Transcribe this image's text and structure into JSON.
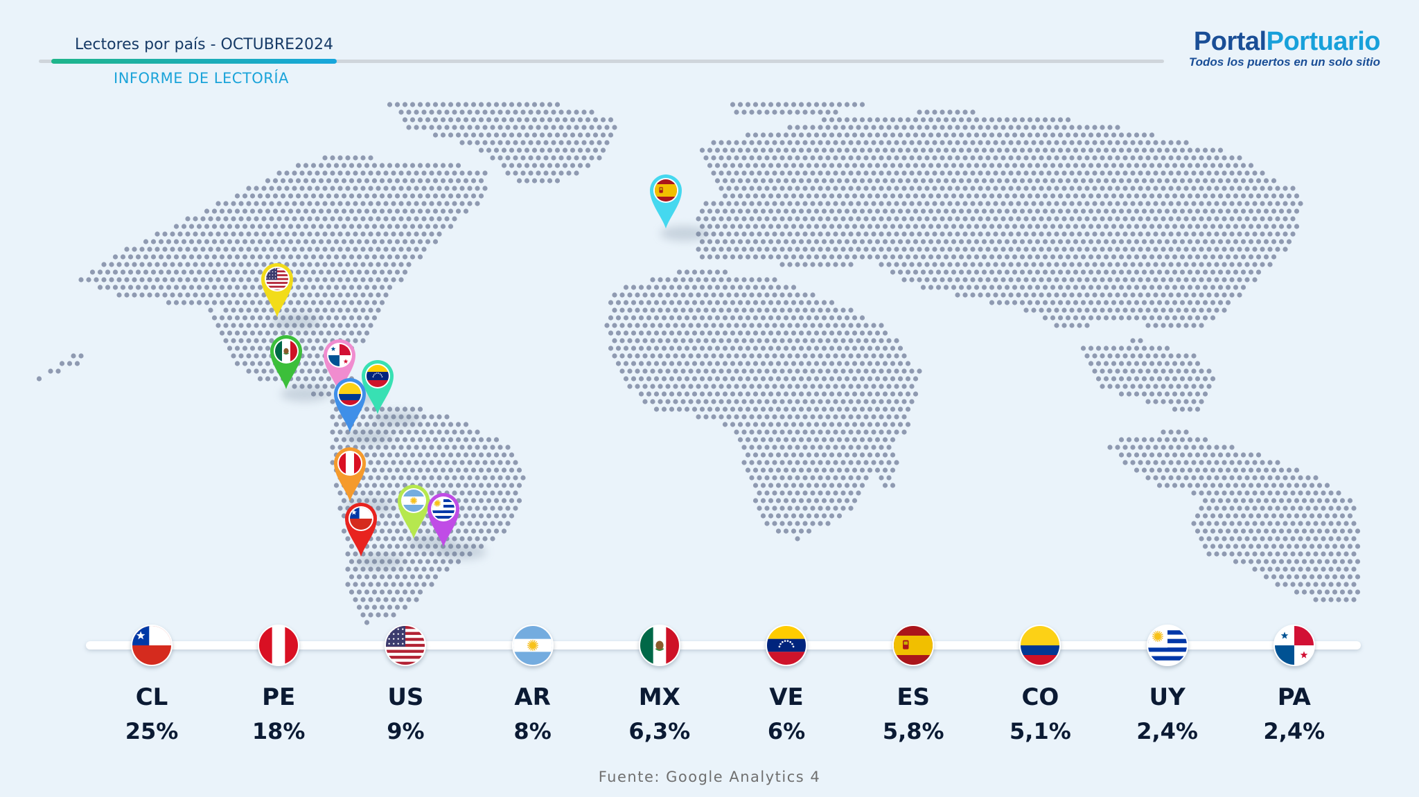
{
  "header": {
    "title": "Lectores por país - OCTUBRE2024",
    "subtitle": "INFORME DE LECTORÍA"
  },
  "logo": {
    "part1": "Portal",
    "part2": "Portuario",
    "tagline": "Todos los puertos en un solo sitio"
  },
  "readers_by_country": [
    {
      "code": "CL",
      "pct": "25%",
      "flag_icon": "chile-flag-icon"
    },
    {
      "code": "PE",
      "pct": "18%",
      "flag_icon": "peru-flag-icon"
    },
    {
      "code": "US",
      "pct": "9%",
      "flag_icon": "usa-flag-icon"
    },
    {
      "code": "AR",
      "pct": "8%",
      "flag_icon": "argentina-flag-icon"
    },
    {
      "code": "MX",
      "pct": "6,3%",
      "flag_icon": "mexico-flag-icon"
    },
    {
      "code": "VE",
      "pct": "6%",
      "flag_icon": "venezuela-flag-icon"
    },
    {
      "code": "ES",
      "pct": "5,8%",
      "flag_icon": "spain-flag-icon"
    },
    {
      "code": "CO",
      "pct": "5,1%",
      "flag_icon": "colombia-flag-icon"
    },
    {
      "code": "UY",
      "pct": "2,4%",
      "flag_icon": "uruguay-flag-icon"
    },
    {
      "code": "PA",
      "pct": "2,4%",
      "flag_icon": "panama-flag-icon"
    }
  ],
  "map_markers": [
    {
      "code": "US",
      "color": "#f2dc1a"
    },
    {
      "code": "MX",
      "color": "#3cbf3a"
    },
    {
      "code": "PA",
      "color": "#f08ccf"
    },
    {
      "code": "VE",
      "color": "#38e0b3"
    },
    {
      "code": "CO",
      "color": "#3f8fe8"
    },
    {
      "code": "PE",
      "color": "#f59a2c"
    },
    {
      "code": "AR",
      "color": "#b6e84e"
    },
    {
      "code": "UY",
      "color": "#c04ce6"
    },
    {
      "code": "CL",
      "color": "#e8231f"
    },
    {
      "code": "ES",
      "color": "#45d8ef"
    }
  ],
  "source": "Fuente: Google Analytics 4",
  "colors": {
    "background": "#eaf3fa",
    "map_dots": "#8f9ab1",
    "title": "#163a66",
    "accent": "#1aa3d9"
  }
}
